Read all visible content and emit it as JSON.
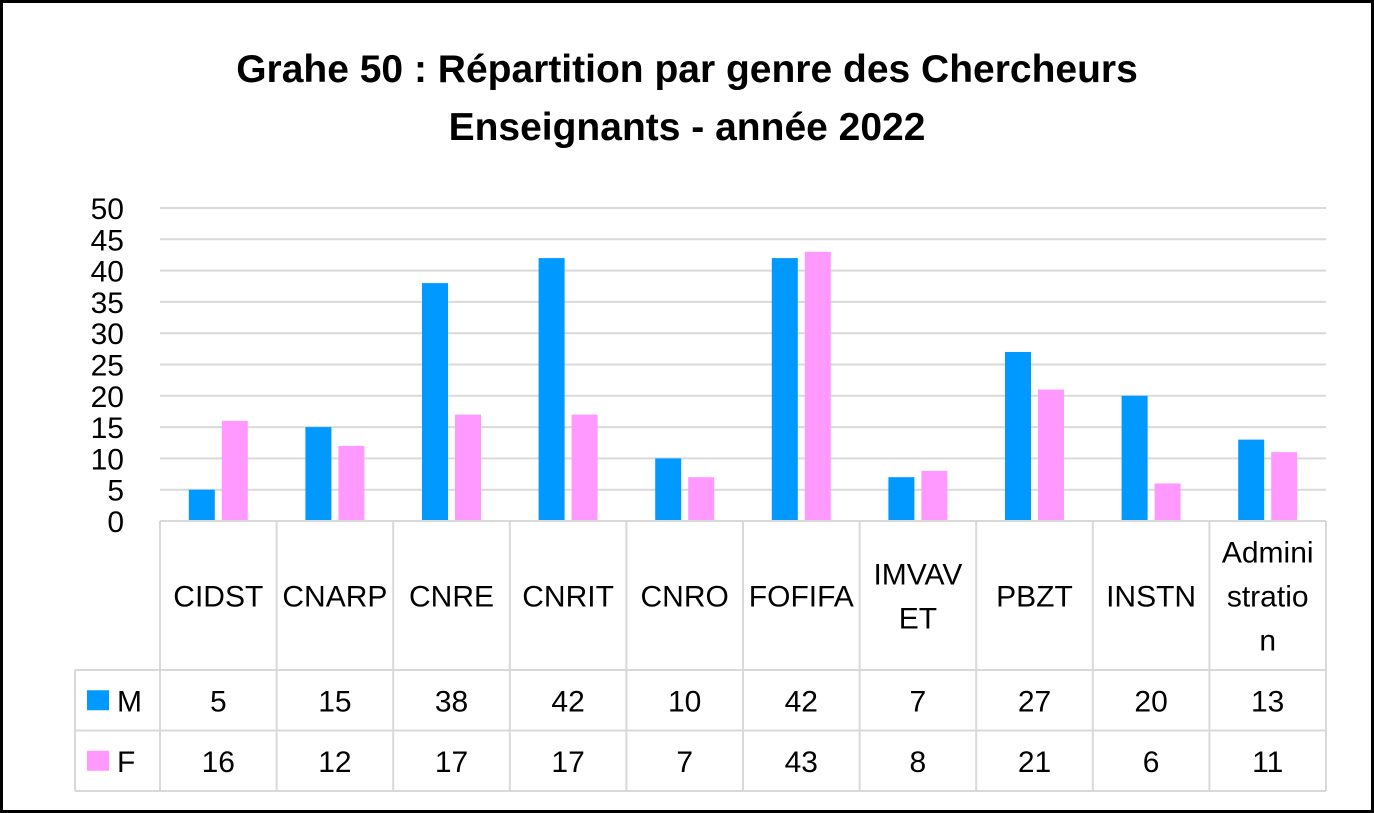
{
  "chart_data": {
    "type": "bar",
    "title_lines": [
      "Grahe 50 : Répartition par genre des Chercheurs",
      "Enseignants - année 2022"
    ],
    "categories": [
      "CIDST",
      "CNARP",
      "CNRE",
      "CNRIT",
      "CNRO",
      "FOFIFA",
      "IMVAVET",
      "PBZT",
      "INSTN",
      "Administration"
    ],
    "category_lines": [
      [
        "CIDST"
      ],
      [
        "CNARP"
      ],
      [
        "CNRE"
      ],
      [
        "CNRIT"
      ],
      [
        "CNRO"
      ],
      [
        "FOFIFA"
      ],
      [
        "IMVAV",
        "ET"
      ],
      [
        "PBZT"
      ],
      [
        "INSTN"
      ],
      [
        "Admini",
        "stratio",
        "n"
      ]
    ],
    "series": [
      {
        "name": "M",
        "color": "#0099ff",
        "values": [
          5,
          15,
          38,
          42,
          10,
          42,
          7,
          27,
          20,
          13
        ]
      },
      {
        "name": "F",
        "color": "#ff99ff",
        "values": [
          16,
          12,
          17,
          17,
          7,
          43,
          8,
          21,
          6,
          11
        ]
      }
    ],
    "ylim": [
      0,
      50
    ],
    "yticks": [
      0,
      5,
      10,
      15,
      20,
      25,
      30,
      35,
      40,
      45,
      50
    ],
    "grid": true,
    "legend": "data-table",
    "data_table": true
  }
}
